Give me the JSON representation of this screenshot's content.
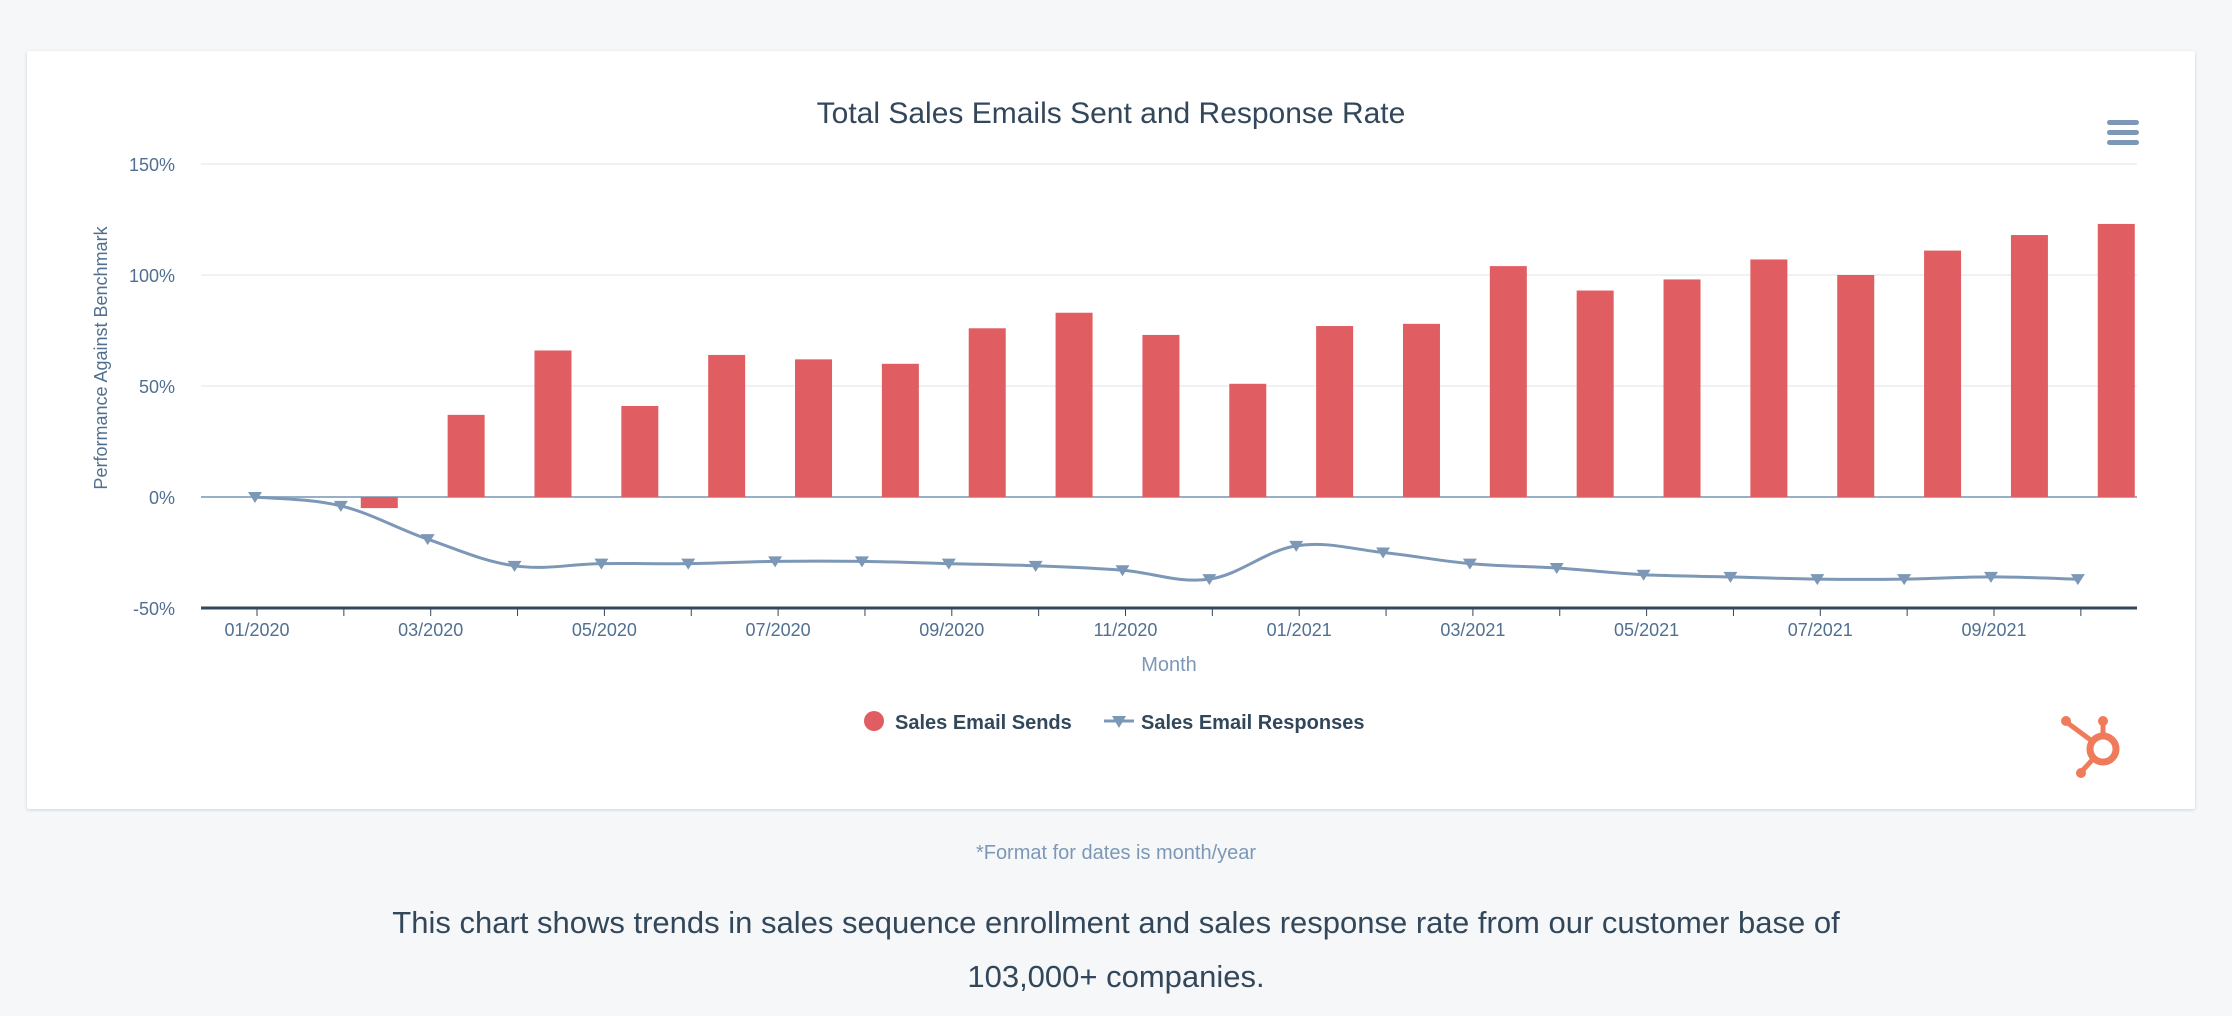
{
  "chart_data": {
    "type": "bar",
    "title": "Total Sales Emails Sent and Response Rate",
    "xlabel": "Month",
    "ylabel": "Performance Against Benchmark",
    "ylim": [
      -50,
      150
    ],
    "yticks": [
      "150%",
      "100%",
      "50%",
      "0%",
      "-50%"
    ],
    "ytick_values": [
      150,
      100,
      50,
      0,
      -50
    ],
    "categories": [
      "01/2020",
      "02/2020",
      "03/2020",
      "04/2020",
      "05/2020",
      "06/2020",
      "07/2020",
      "08/2020",
      "09/2020",
      "10/2020",
      "11/2020",
      "12/2020",
      "01/2021",
      "02/2021",
      "03/2021",
      "04/2021",
      "05/2021",
      "06/2021",
      "07/2021",
      "08/2021",
      "09/2021",
      "10/2021"
    ],
    "xtick_labels": [
      "01/2020",
      "",
      "03/2020",
      "",
      "05/2020",
      "",
      "07/2020",
      "",
      "09/2020",
      "",
      "11/2020",
      "",
      "01/2021",
      "",
      "03/2021",
      "",
      "05/2021",
      "",
      "07/2021",
      "",
      "09/2021",
      ""
    ],
    "grid": true,
    "legend_position": "bottom-center",
    "series": [
      {
        "name": "Sales Email Sends",
        "type": "bar",
        "color": "#e05e62",
        "values": [
          0,
          -5,
          37,
          66,
          41,
          64,
          62,
          60,
          76,
          83,
          73,
          51,
          77,
          78,
          104,
          93,
          98,
          107,
          100,
          111,
          118,
          123
        ]
      },
      {
        "name": "Sales Email Responses",
        "type": "line",
        "marker": "triangle-down",
        "color": "#7c98b6",
        "values": [
          0,
          -4,
          -19,
          -31,
          -30,
          -30,
          -29,
          -29,
          -30,
          -31,
          -33,
          -37,
          -22,
          -25,
          -30,
          -32,
          -35,
          -36,
          -37,
          -37,
          -36,
          -37
        ]
      }
    ]
  },
  "footnote": "*Format for dates is month/year",
  "description": "This chart shows trends in sales sequence enrollment and sales response rate from our customer base of 103,000+ companies.",
  "icons": {
    "menu": "hamburger-menu-icon",
    "logo": "hubspot-sprocket-icon"
  },
  "colors": {
    "logo": "#f07b5a",
    "axis": "#33475b",
    "grid": "#dfe3eb"
  }
}
